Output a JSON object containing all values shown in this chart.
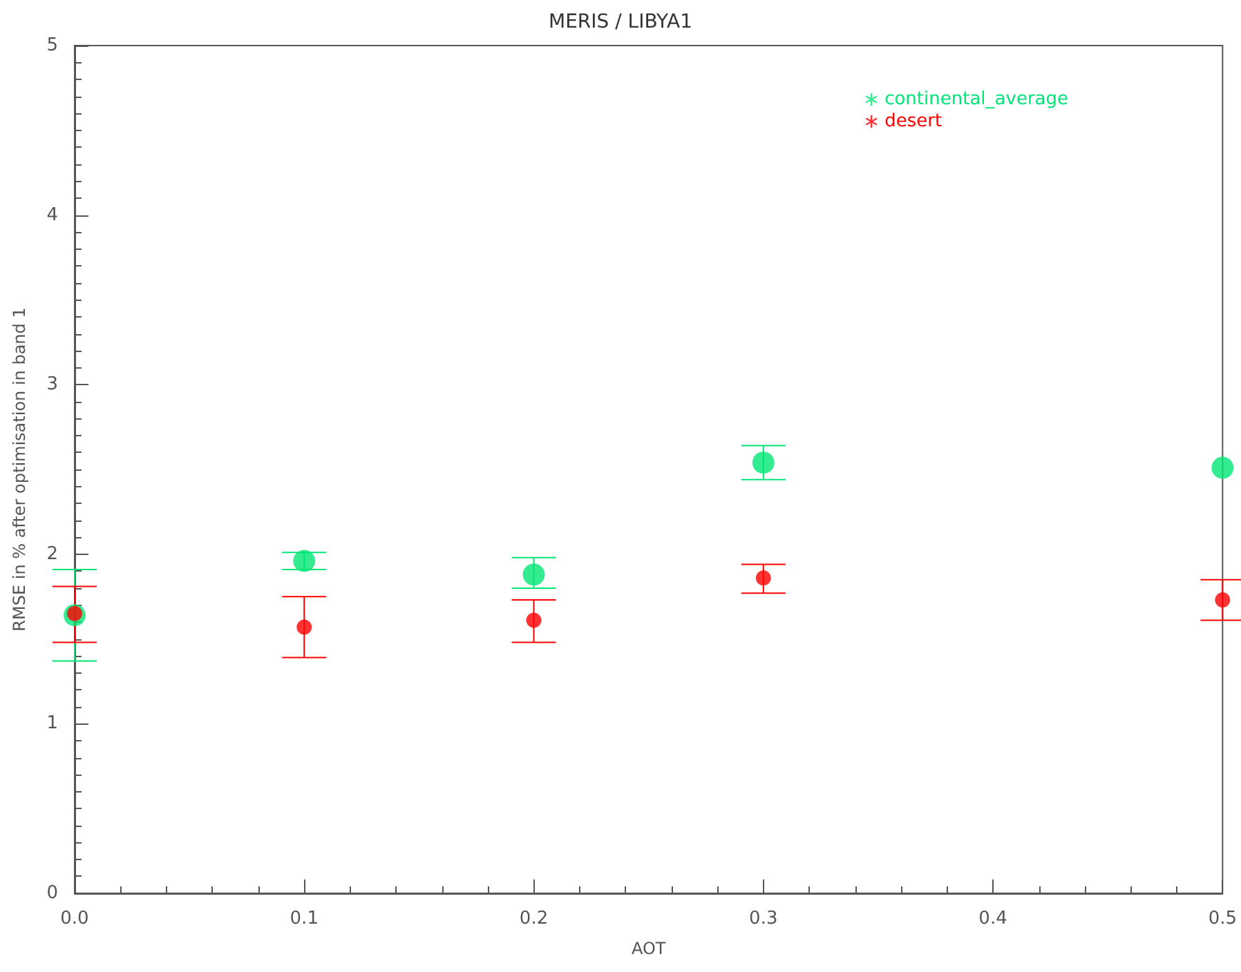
{
  "chart_data": {
    "type": "scatter",
    "title": "MERIS / LIBYA1",
    "xlabel": "AOT",
    "ylabel": "RMSE in % after optimisation in band 1",
    "x": [
      0,
      0.1,
      0.2,
      0.3,
      0.5
    ],
    "series": [
      {
        "name": "continental_average",
        "color": "#00e676",
        "values": [
          1.64,
          1.96,
          1.88,
          2.54,
          2.51
        ],
        "errors": [
          [
            1.37,
            1.91
          ],
          [
            1.91,
            2.01
          ],
          [
            1.8,
            1.98
          ],
          [
            2.44,
            2.64
          ],
          null
        ]
      },
      {
        "name": "desert",
        "color": "#ff0000",
        "values": [
          1.65,
          1.57,
          1.61,
          1.86,
          1.73
        ],
        "errors": [
          [
            1.48,
            1.81
          ],
          [
            1.39,
            1.75
          ],
          [
            1.48,
            1.73
          ],
          [
            1.77,
            1.94
          ],
          [
            1.61,
            1.85
          ]
        ]
      }
    ],
    "xlim": [
      0,
      0.5
    ],
    "xticks": [
      {
        "value": 0,
        "label": "0.0"
      },
      {
        "value": 0.1,
        "label": "0.1"
      },
      {
        "value": 0.2,
        "label": "0.2"
      },
      {
        "value": 0.3,
        "label": "0.3"
      },
      {
        "value": 0.4,
        "label": "0.4"
      },
      {
        "value": 0.5,
        "label": "0.5"
      }
    ],
    "ylim": [
      0,
      5
    ],
    "yticks": [
      0,
      1,
      2,
      3,
      4,
      5
    ],
    "marker": "circle",
    "legend": "top right",
    "grid": false
  }
}
